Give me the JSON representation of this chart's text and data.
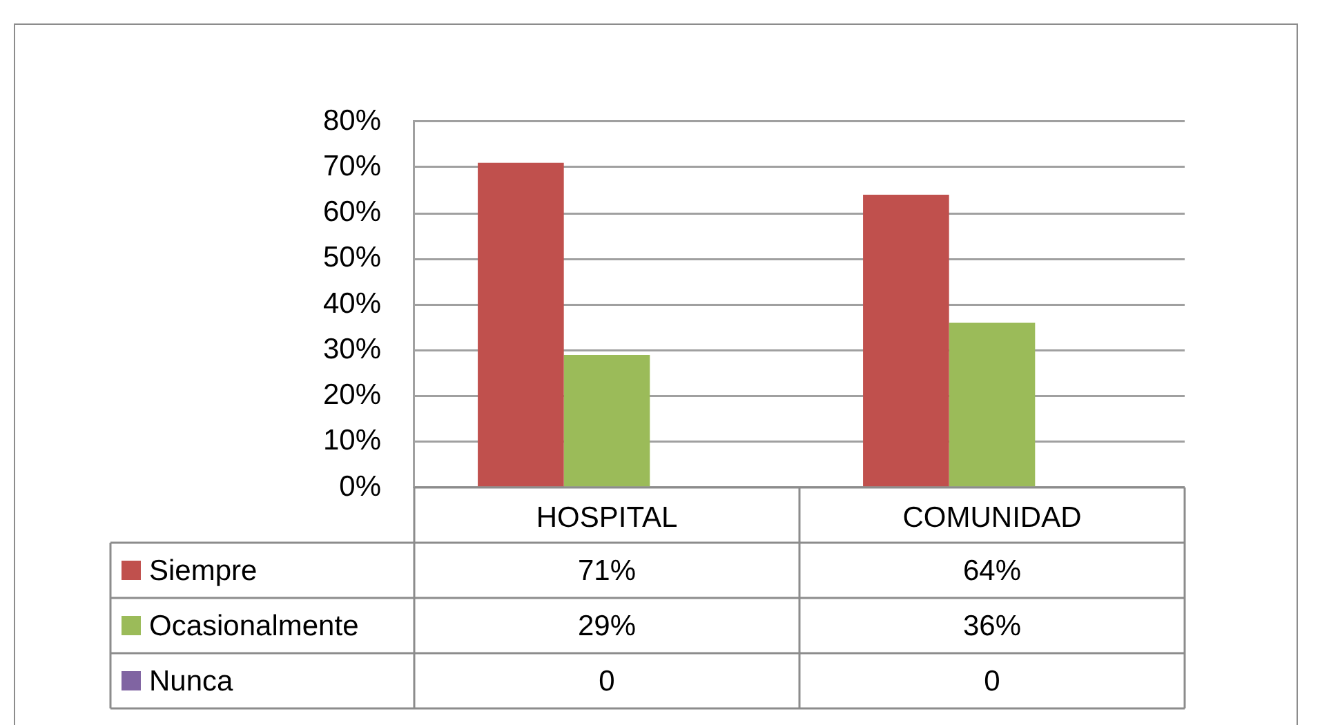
{
  "chart_data": {
    "type": "bar",
    "categories": [
      "HOSPITAL",
      "COMUNIDAD"
    ],
    "series": [
      {
        "name": "Siempre",
        "color": "#c0504d",
        "values": [
          71,
          64
        ],
        "value_labels": [
          "71%",
          "64%"
        ]
      },
      {
        "name": "Ocasionalmente",
        "color": "#9bbb59",
        "values": [
          29,
          36
        ],
        "value_labels": [
          "29%",
          "36%"
        ]
      },
      {
        "name": "Nunca",
        "color": "#8064a2",
        "values": [
          0,
          0
        ],
        "value_labels": [
          "0",
          "0"
        ]
      }
    ],
    "ylim": [
      0,
      80
    ],
    "yticks": [
      {
        "value": 0,
        "label": "0%"
      },
      {
        "value": 10,
        "label": "10%"
      },
      {
        "value": 20,
        "label": "20%"
      },
      {
        "value": 30,
        "label": "30%"
      },
      {
        "value": 40,
        "label": "40%"
      },
      {
        "value": 50,
        "label": "50%"
      },
      {
        "value": 60,
        "label": "60%"
      },
      {
        "value": 70,
        "label": "70%"
      },
      {
        "value": 80,
        "label": "80%"
      }
    ],
    "grid": "y",
    "legend": "bottom"
  }
}
